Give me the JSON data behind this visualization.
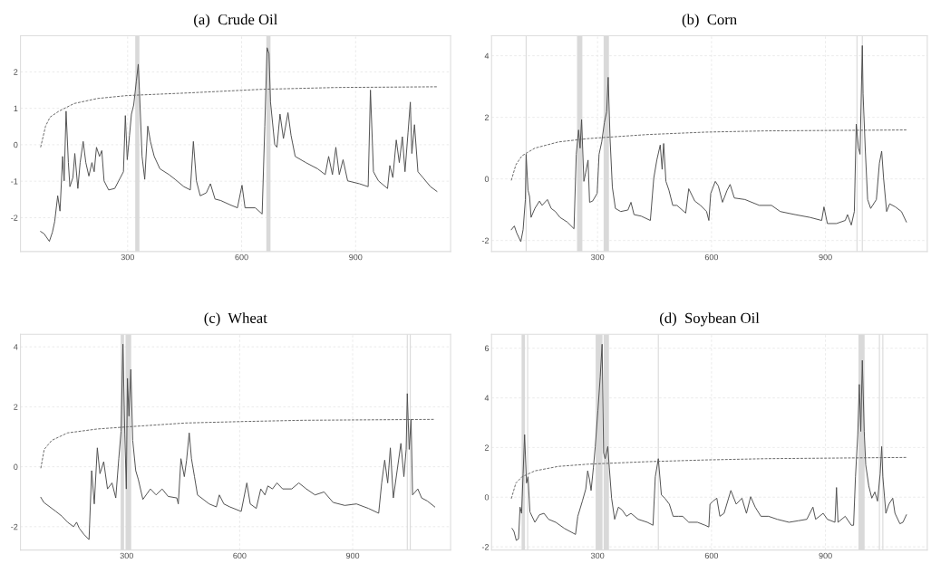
{
  "chart_data": [
    {
      "type": "line",
      "title": "(a)  Crude Oil",
      "xlim": [
        18,
        1150
      ],
      "ylim": [
        -2.93,
        2.99
      ],
      "xticks": [
        300,
        600,
        900
      ],
      "yticks": [
        -2,
        -1,
        0,
        1,
        2
      ],
      "grid": true,
      "bands": [
        {
          "axis": "x",
          "from": 320,
          "to": 331,
          "color": "#d9d9d9"
        },
        {
          "axis": "x",
          "from": 665,
          "to": 676,
          "color": "#d9d9d9"
        }
      ],
      "series": [
        {
          "color": "#4d4d4d",
          "x": [
            71,
            80,
            94,
            102,
            108,
            116,
            122,
            129,
            133,
            138,
            144,
            148,
            156,
            161,
            169,
            175,
            183,
            190,
            198,
            206,
            212,
            218,
            226,
            232,
            238,
            250,
            266,
            281,
            289,
            294,
            299,
            305,
            310,
            316,
            323,
            328,
            331,
            338,
            345,
            353,
            360,
            370,
            385,
            409,
            425,
            448,
            465,
            473,
            481,
            491,
            507,
            518,
            530,
            545,
            570,
            589,
            601,
            609,
            636,
            654,
            661,
            667,
            672,
            676,
            687,
            693,
            701,
            710,
            722,
            730,
            741,
            769,
            800,
            820,
            829,
            839,
            848,
            857,
            867,
            879,
            910,
            933,
            939,
            947,
            960,
            984,
            990,
            998,
            1007,
            1015,
            1023,
            1030,
            1038,
            1044,
            1048,
            1055,
            1064,
            1077,
            1097,
            1114
          ],
          "values": [
            -2.38,
            -2.44,
            -2.65,
            -2.4,
            -2.11,
            -1.4,
            -1.82,
            -0.32,
            -0.99,
            0.92,
            -0.49,
            -1.15,
            -0.9,
            -0.24,
            -1.2,
            -0.49,
            0.09,
            -0.49,
            -0.86,
            -0.49,
            -0.74,
            -0.07,
            -0.32,
            -0.16,
            -0.99,
            -1.24,
            -1.2,
            -0.9,
            -0.74,
            0.8,
            -0.41,
            0.26,
            0.84,
            1.09,
            1.75,
            2.21,
            1.5,
            -0.32,
            -0.95,
            0.51,
            0.09,
            -0.32,
            -0.66,
            -0.82,
            -0.95,
            -1.15,
            -1.24,
            0.09,
            -0.99,
            -1.4,
            -1.32,
            -1.07,
            -1.49,
            -1.53,
            -1.65,
            -1.73,
            -1.11,
            -1.73,
            -1.73,
            -1.9,
            0.51,
            2.66,
            2.5,
            1.17,
            0.01,
            -0.07,
            0.84,
            0.17,
            0.88,
            0.26,
            -0.32,
            -0.49,
            -0.66,
            -0.82,
            -0.32,
            -0.82,
            -0.07,
            -0.82,
            -0.41,
            -0.99,
            -1.07,
            -1.15,
            1.5,
            -0.74,
            -0.99,
            -1.2,
            -0.57,
            -0.9,
            0.13,
            -0.49,
            0.22,
            -0.74,
            0.34,
            1.17,
            -0.24,
            0.55,
            -0.74,
            -0.9,
            -1.15,
            -1.28
          ]
        },
        {
          "color": "#666666",
          "line_style": "dashed",
          "x": [
            71,
            84,
            96,
            119,
            159,
            221,
            299,
            456,
            652,
            848,
            1114
          ],
          "values": [
            -0.07,
            0.51,
            0.76,
            0.92,
            1.13,
            1.27,
            1.35,
            1.42,
            1.52,
            1.57,
            1.59
          ]
        }
      ]
    },
    {
      "type": "line",
      "title": "(b)  Corn",
      "xlim": [
        21,
        1168
      ],
      "ylim": [
        -2.36,
        4.65
      ],
      "xticks": [
        300,
        600,
        900
      ],
      "yticks": [
        -2,
        0,
        2,
        4
      ],
      "grid": true,
      "bands": [
        {
          "axis": "x",
          "from": 246,
          "to": 260,
          "color": "#d9d9d9"
        },
        {
          "axis": "x",
          "from": 316,
          "to": 330,
          "color": "#d9d9d9"
        }
      ],
      "ref_lines": [
        {
          "axis": "x",
          "value": 112,
          "color": "#d9d9d9"
        },
        {
          "axis": "x",
          "value": 983,
          "color": "#d9d9d9"
        },
        {
          "axis": "x",
          "value": 997,
          "color": "#d9d9d9"
        }
      ],
      "series": [
        {
          "color": "#4d4d4d",
          "x": [
            73,
            81,
            87,
            98,
            104,
            110,
            112,
            117,
            121,
            125,
            135,
            147,
            154,
            168,
            178,
            189,
            201,
            220,
            238,
            244,
            250,
            254,
            258,
            264,
            269,
            275,
            279,
            287,
            299,
            304,
            311,
            318,
            324,
            328,
            333,
            339,
            347,
            361,
            380,
            388,
            396,
            415,
            439,
            448,
            456,
            465,
            470,
            474,
            480,
            488,
            498,
            509,
            532,
            540,
            556,
            571,
            587,
            593,
            598,
            610,
            618,
            629,
            641,
            649,
            660,
            688,
            726,
            758,
            781,
            820,
            859,
            890,
            896,
            905,
            929,
            952,
            958,
            968,
            976,
            981,
            987,
            991,
            997,
            999,
            1005,
            1011,
            1019,
            1034,
            1042,
            1048,
            1053,
            1061,
            1069,
            1084,
            1100,
            1113
          ],
          "values": [
            -1.65,
            -1.53,
            -1.75,
            -2.04,
            -1.65,
            -0.67,
            0.8,
            -0.37,
            -0.57,
            -1.25,
            -0.96,
            -0.72,
            -0.86,
            -0.67,
            -0.96,
            -1.06,
            -1.25,
            -1.4,
            -1.62,
            0.8,
            1.59,
            1.0,
            1.93,
            -0.08,
            0.22,
            0.61,
            -0.76,
            -0.72,
            -0.47,
            0.8,
            1.2,
            1.83,
            2.18,
            3.3,
            1.29,
            -0.27,
            -0.96,
            -1.06,
            -1.01,
            -0.76,
            -1.16,
            -1.21,
            -1.35,
            0.02,
            0.61,
            1.1,
            0.31,
            1.15,
            -0.08,
            -0.37,
            -0.86,
            -0.86,
            -1.11,
            -0.32,
            -0.72,
            -0.86,
            -1.06,
            -1.35,
            -0.47,
            -0.08,
            -0.23,
            -0.76,
            -0.37,
            -0.18,
            -0.62,
            -0.67,
            -0.86,
            -0.86,
            -1.06,
            -1.16,
            -1.25,
            -1.35,
            -0.91,
            -1.45,
            -1.45,
            -1.35,
            -1.16,
            -1.5,
            -1.06,
            1.78,
            1.0,
            0.8,
            4.33,
            2.76,
            0.9,
            -0.67,
            -0.96,
            -0.67,
            0.51,
            0.9,
            0.02,
            -1.06,
            -0.81,
            -0.91,
            -1.06,
            -1.4
          ]
        },
        {
          "color": "#666666",
          "line_style": "dashed",
          "x": [
            73,
            85,
            101,
            135,
            197,
            275,
            431,
            586,
            742,
            1113
          ],
          "values": [
            -0.05,
            0.46,
            0.75,
            1.0,
            1.2,
            1.31,
            1.44,
            1.52,
            1.56,
            1.59
          ]
        }
      ]
    },
    {
      "type": "line",
      "title": "(c)  Wheat",
      "xlim": [
        18,
        1160
      ],
      "ylim": [
        -2.78,
        4.42
      ],
      "xticks": [
        300,
        600,
        900
      ],
      "yticks": [
        -2,
        0,
        2,
        4
      ],
      "grid": true,
      "bands": [
        {
          "axis": "x",
          "from": 284,
          "to": 293,
          "color": "#d9d9d9"
        },
        {
          "axis": "x",
          "from": 297,
          "to": 312,
          "color": "#d9d9d9"
        }
      ],
      "ref_lines": [
        {
          "axis": "x",
          "value": 1045,
          "color": "#d9d9d9"
        },
        {
          "axis": "x",
          "value": 1053,
          "color": "#d9d9d9"
        }
      ],
      "series": [
        {
          "color": "#4d4d4d",
          "x": [
            72,
            80,
            96,
            112,
            128,
            143,
            159,
            167,
            174,
            186,
            200,
            207,
            214,
            222,
            229,
            239,
            249,
            261,
            271,
            279,
            285,
            290,
            295,
            299,
            302,
            306,
            311,
            316,
            324,
            331,
            343,
            363,
            378,
            394,
            410,
            433,
            437,
            444,
            453,
            459,
            466,
            472,
            480,
            488,
            519,
            538,
            546,
            558,
            574,
            604,
            619,
            628,
            644,
            656,
            667,
            675,
            687,
            699,
            714,
            738,
            757,
            777,
            800,
            824,
            848,
            879,
            910,
            942,
            969,
            977,
            985,
            993,
            1000,
            1008,
            1018,
            1028,
            1036,
            1042,
            1045,
            1050,
            1055,
            1059,
            1073,
            1083,
            1098,
            1118
          ],
          "values": [
            -1.02,
            -1.19,
            -1.34,
            -1.49,
            -1.65,
            -1.85,
            -2.0,
            -1.85,
            -2.05,
            -2.25,
            -2.43,
            -0.13,
            -1.24,
            0.63,
            -0.23,
            0.17,
            -0.74,
            -0.54,
            -1.04,
            0.27,
            1.18,
            4.09,
            1.08,
            -0.74,
            2.95,
            1.69,
            3.25,
            0.88,
            -0.13,
            -0.43,
            -1.09,
            -0.74,
            -0.94,
            -0.74,
            -0.99,
            -1.04,
            -1.24,
            0.27,
            -0.33,
            0.22,
            1.13,
            0.27,
            -0.33,
            -0.94,
            -1.24,
            -1.34,
            -0.94,
            -1.24,
            -1.34,
            -1.49,
            -0.54,
            -1.24,
            -1.39,
            -0.74,
            -0.94,
            -0.64,
            -0.74,
            -0.54,
            -0.74,
            -0.74,
            -0.54,
            -0.74,
            -0.94,
            -0.84,
            -1.19,
            -1.29,
            -1.24,
            -1.39,
            -1.55,
            -0.54,
            0.22,
            -0.54,
            0.63,
            -1.04,
            -0.13,
            0.78,
            -0.33,
            0.58,
            2.44,
            0.58,
            1.59,
            -0.94,
            -0.74,
            -1.04,
            -1.14,
            -1.34
          ]
        },
        {
          "color": "#666666",
          "line_style": "dashed",
          "x": [
            72,
            81,
            101,
            143,
            222,
            300,
            456,
            613,
            769,
            1118
          ],
          "values": [
            -0.05,
            0.58,
            0.88,
            1.13,
            1.26,
            1.33,
            1.46,
            1.51,
            1.55,
            1.58
          ]
        }
      ]
    },
    {
      "type": "line",
      "title": "(d)  Soybean Oil",
      "xlim": [
        21,
        1168
      ],
      "ylim": [
        -2.13,
        6.56
      ],
      "xticks": [
        300,
        600,
        900
      ],
      "yticks": [
        -2,
        0,
        2,
        4,
        6
      ],
      "grid": true,
      "bands": [
        {
          "axis": "x",
          "from": 100,
          "to": 109,
          "color": "#d9d9d9"
        },
        {
          "axis": "x",
          "from": 295,
          "to": 313,
          "color": "#d9d9d9"
        },
        {
          "axis": "x",
          "from": 316,
          "to": 330,
          "color": "#d9d9d9"
        },
        {
          "axis": "x",
          "from": 987,
          "to": 1003,
          "color": "#d9d9d9"
        }
      ],
      "ref_lines": [
        {
          "axis": "x",
          "value": 116,
          "color": "#d9d9d9"
        },
        {
          "axis": "x",
          "value": 460,
          "color": "#d9d9d9"
        },
        {
          "axis": "x",
          "value": 1042,
          "color": "#d9d9d9"
        },
        {
          "axis": "x",
          "value": 1051,
          "color": "#d9d9d9"
        }
      ],
      "series": [
        {
          "color": "#4d4d4d",
          "x": [
            75,
            80,
            86,
            92,
            96,
            100,
            104,
            108,
            113,
            117,
            122,
            135,
            147,
            159,
            171,
            190,
            213,
            242,
            248,
            260,
            269,
            274,
            279,
            283,
            289,
            294,
            301,
            307,
            312,
            316,
            320,
            327,
            331,
            337,
            345,
            355,
            365,
            376,
            388,
            407,
            431,
            446,
            452,
            460,
            468,
            477,
            489,
            499,
            513,
            524,
            540,
            563,
            583,
            593,
            596,
            604,
            614,
            622,
            633,
            651,
            665,
            680,
            692,
            703,
            715,
            730,
            750,
            773,
            804,
            828,
            851,
            867,
            874,
            894,
            905,
            925,
            929,
            933,
            952,
            968,
            974,
            979,
            985,
            989,
            993,
            997,
            1002,
            1006,
            1014,
            1022,
            1030,
            1037,
            1044,
            1048,
            1051,
            1059,
            1067,
            1077,
            1083,
            1096,
            1104,
            1113
          ],
          "values": [
            -1.26,
            -1.38,
            -1.74,
            -1.68,
            -0.4,
            -0.65,
            0.94,
            2.52,
            0.57,
            0.82,
            -0.59,
            -1.01,
            -0.71,
            -0.65,
            -0.89,
            -1.01,
            -1.26,
            -1.5,
            -0.77,
            -0.16,
            0.33,
            1.06,
            0.7,
            0.27,
            1.18,
            2.04,
            3.5,
            4.84,
            6.16,
            1.79,
            1.55,
            2.04,
            1.18,
            -0.04,
            -0.89,
            -0.4,
            -0.52,
            -0.77,
            -0.65,
            -0.89,
            -1.01,
            -1.13,
            0.82,
            1.55,
            0.09,
            -0.04,
            -0.28,
            -0.77,
            -0.77,
            -0.77,
            -1.01,
            -1.01,
            -1.13,
            -1.2,
            -0.28,
            -0.16,
            -0.04,
            -0.77,
            -0.65,
            0.27,
            -0.28,
            -0.04,
            -0.65,
            0.02,
            -0.4,
            -0.77,
            -0.77,
            -0.89,
            -1.01,
            -0.95,
            -0.89,
            -0.4,
            -0.89,
            -0.65,
            -0.89,
            -1.01,
            0.39,
            -1.01,
            -0.77,
            -1.13,
            -1.13,
            0.82,
            2.52,
            4.54,
            2.65,
            5.51,
            2.65,
            1.3,
            0.45,
            -0.04,
            0.21,
            -0.16,
            0.94,
            2.04,
            0.82,
            -0.65,
            -0.28,
            -0.04,
            -0.65,
            -1.07,
            -1.01,
            -0.71
          ]
        },
        {
          "color": "#666666",
          "line_style": "dashed",
          "x": [
            73,
            85,
            101,
            135,
            197,
            275,
            431,
            586,
            742,
            1113
          ],
          "values": [
            -0.06,
            0.57,
            0.82,
            1.06,
            1.24,
            1.33,
            1.43,
            1.5,
            1.55,
            1.6
          ]
        }
      ]
    }
  ]
}
